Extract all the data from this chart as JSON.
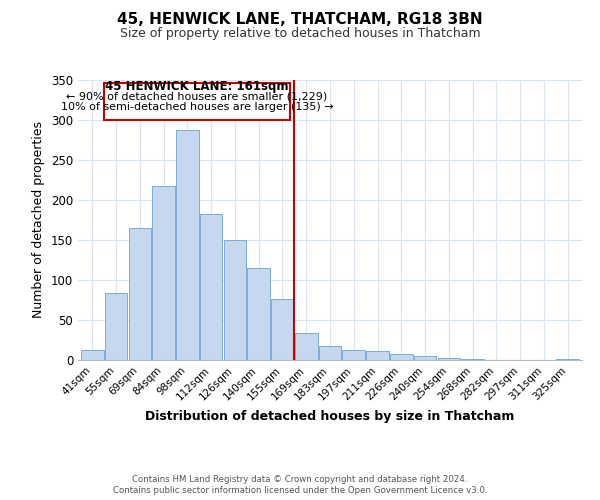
{
  "title": "45, HENWICK LANE, THATCHAM, RG18 3BN",
  "subtitle": "Size of property relative to detached houses in Thatcham",
  "xlabel": "Distribution of detached houses by size in Thatcham",
  "ylabel": "Number of detached properties",
  "bar_labels": [
    "41sqm",
    "55sqm",
    "69sqm",
    "84sqm",
    "98sqm",
    "112sqm",
    "126sqm",
    "140sqm",
    "155sqm",
    "169sqm",
    "183sqm",
    "197sqm",
    "211sqm",
    "226sqm",
    "240sqm",
    "254sqm",
    "268sqm",
    "282sqm",
    "297sqm",
    "311sqm",
    "325sqm"
  ],
  "bar_values": [
    12,
    84,
    165,
    218,
    288,
    182,
    150,
    115,
    76,
    34,
    18,
    13,
    11,
    8,
    5,
    2,
    1,
    0,
    0,
    0,
    1
  ],
  "bar_color": "#c5d8f0",
  "bar_edge_color": "#7aaed4",
  "vline_x": 8.5,
  "vline_color": "#cc0000",
  "box_text_line1": "45 HENWICK LANE: 161sqm",
  "box_text_line2": "← 90% of detached houses are smaller (1,229)",
  "box_text_line3": "10% of semi-detached houses are larger (135) →",
  "box_facecolor": "white",
  "box_edgecolor": "#cc0000",
  "ylim": [
    0,
    350
  ],
  "yticks": [
    0,
    50,
    100,
    150,
    200,
    250,
    300,
    350
  ],
  "footnote1": "Contains HM Land Registry data © Crown copyright and database right 2024.",
  "footnote2": "Contains public sector information licensed under the Open Government Licence v3.0.",
  "bg_color": "white",
  "grid_color": "#d8e4f0"
}
